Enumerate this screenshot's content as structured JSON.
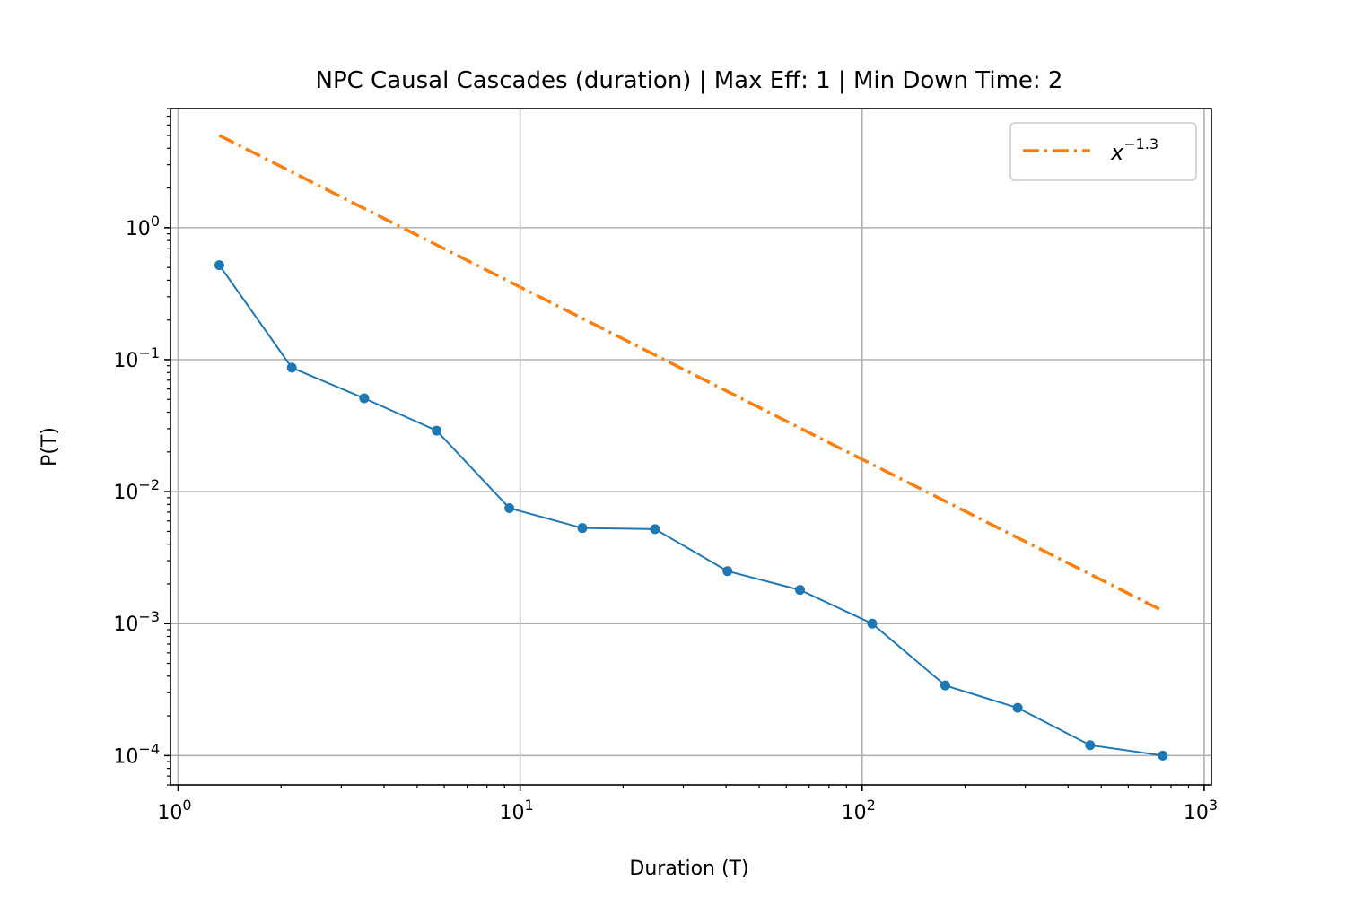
{
  "chart_data": {
    "type": "line",
    "title": "NPC Causal Cascades (duration) | Max Eff: 1 | Min Down Time: 2",
    "xlabel": "Duration (T)",
    "ylabel": "P(T)",
    "xscale": "log",
    "yscale": "log",
    "xlim": [
      0.95,
      1050
    ],
    "ylim": [
      6e-05,
      8
    ],
    "grid": true,
    "legend_position": "top-right",
    "x_ticks": [
      {
        "value": 1,
        "base": "10",
        "exp": "0"
      },
      {
        "value": 10,
        "base": "10",
        "exp": "1"
      },
      {
        "value": 100,
        "base": "10",
        "exp": "2"
      },
      {
        "value": 1000,
        "base": "10",
        "exp": "3"
      }
    ],
    "y_ticks": [
      {
        "value": 0.0001,
        "base": "10",
        "exp": "−4"
      },
      {
        "value": 0.001,
        "base": "10",
        "exp": "−3"
      },
      {
        "value": 0.01,
        "base": "10",
        "exp": "−2"
      },
      {
        "value": 0.1,
        "base": "10",
        "exp": "−1"
      },
      {
        "value": 1,
        "base": "10",
        "exp": "0"
      }
    ],
    "series": [
      {
        "color": "#1f77b4",
        "style": "solid-markers",
        "x": [
          1.32,
          2.15,
          3.5,
          5.7,
          9.3,
          15.2,
          24.8,
          40.4,
          65.8,
          107,
          175,
          285,
          464,
          757
        ],
        "y": [
          0.52,
          0.087,
          0.051,
          0.029,
          0.0075,
          0.0053,
          0.0052,
          0.0025,
          0.0018,
          0.001,
          0.00034,
          0.00023,
          0.00012,
          0.0001
        ]
      },
      {
        "name_base": "x",
        "name_exp": "−1.3",
        "color": "#ff7f0e",
        "style": "dashdot",
        "exponent": -1.3,
        "x": [
          1.32,
          757
        ],
        "y": [
          5.0,
          0.00125
        ]
      }
    ]
  }
}
